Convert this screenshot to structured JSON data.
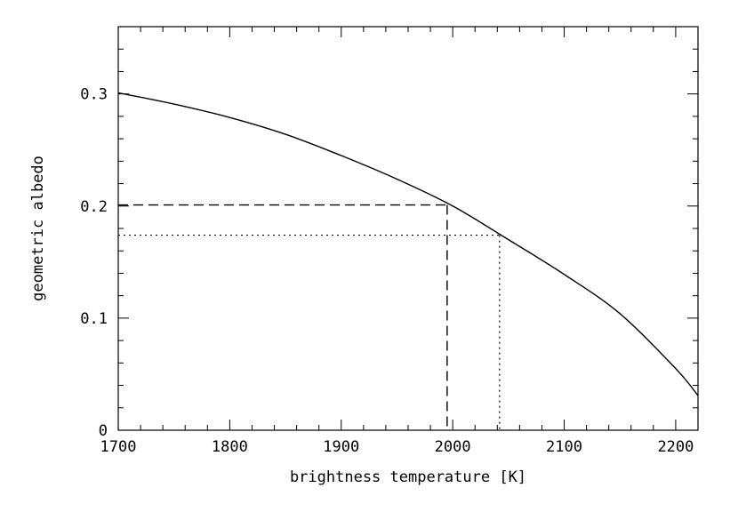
{
  "chart_data": {
    "type": "line",
    "title": "",
    "xlabel": "brightness temperature [K]",
    "ylabel": "geometric albedo",
    "xlim": [
      1700,
      2220
    ],
    "ylim": [
      0,
      0.36
    ],
    "x_ticks": [
      1700,
      1800,
      1900,
      2000,
      2100,
      2200
    ],
    "x_tick_labels": [
      "1700",
      "1800",
      "1900",
      "2000",
      "2100",
      "2200"
    ],
    "y_ticks": [
      0,
      0.1,
      0.2,
      0.3
    ],
    "y_tick_labels": [
      "0",
      "0.1",
      "0.2",
      "0.3"
    ],
    "grid": false,
    "legend": "none",
    "series": [
      {
        "style": "solid",
        "color": "#000000",
        "x": [
          1700,
          1750,
          1800,
          1850,
          1900,
          1950,
          2000,
          2050,
          2100,
          2150,
          2200,
          2220
        ],
        "y": [
          0.301,
          0.291,
          0.279,
          0.264,
          0.245,
          0.224,
          0.2,
          0.17,
          0.139,
          0.104,
          0.055,
          0.031
        ]
      }
    ],
    "reference_lines": [
      {
        "style": "dashed",
        "color": "#000000",
        "x": 1995,
        "y": 0.201
      },
      {
        "style": "dotted",
        "color": "#000000",
        "x": 2042,
        "y": 0.174
      }
    ]
  }
}
